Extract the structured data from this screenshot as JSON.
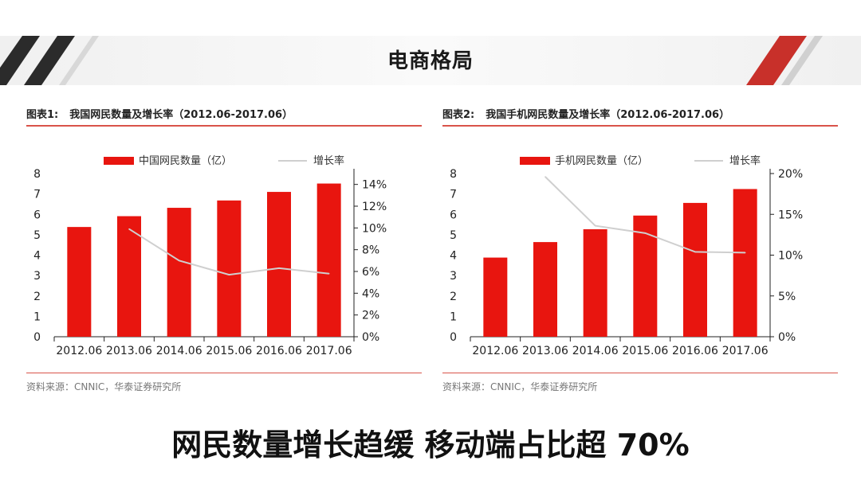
{
  "slide": {
    "title": "电商格局",
    "headline": "网民数量增长趋缓   移动端占比超 70%"
  },
  "colors": {
    "bar": "#e8150f",
    "line": "#cfcfcf",
    "rule": "#d9534a",
    "banner_stripe": "#2b2b2b",
    "banner_accent": "#c8302a"
  },
  "panels": [
    {
      "fig_no": "图表1:",
      "title": "我国网民数量及增长率（2012.06-2017.06）",
      "source": "资料来源：CNNIC，华泰证券研究所"
    },
    {
      "fig_no": "图表2:",
      "title": "我国手机网民数量及增长率（2012.06-2017.06）",
      "source": "资料来源：CNNIC，华泰证券研究所"
    }
  ],
  "chart_data": [
    {
      "type": "bar",
      "categories": [
        "2012.06",
        "2013.06",
        "2014.06",
        "2015.06",
        "2016.06",
        "2017.06"
      ],
      "series": [
        {
          "name": "中国网民数量（亿）",
          "kind": "bar",
          "axis": "left",
          "values": [
            5.38,
            5.91,
            6.32,
            6.68,
            7.1,
            7.51
          ]
        },
        {
          "name": "增长率",
          "kind": "line",
          "axis": "right",
          "values": [
            null,
            9.9,
            7.0,
            5.7,
            6.3,
            5.8
          ]
        }
      ],
      "ylim": [
        0,
        8
      ],
      "yticks": [
        "0",
        "1",
        "2",
        "3",
        "4",
        "5",
        "6",
        "7",
        "8"
      ],
      "y2lim": [
        0,
        15
      ],
      "y2ticks": [
        "0%",
        "2%",
        "4%",
        "6%",
        "8%",
        "10%",
        "12%",
        "14%"
      ],
      "y2tick_values": [
        0,
        2,
        4,
        6,
        8,
        10,
        12,
        14
      ],
      "legend": "top-center",
      "grid": false
    },
    {
      "type": "bar",
      "categories": [
        "2012.06",
        "2013.06",
        "2014.06",
        "2015.06",
        "2016.06",
        "2017.06"
      ],
      "series": [
        {
          "name": "手机网民数量（亿）",
          "kind": "bar",
          "axis": "left",
          "values": [
            3.88,
            4.64,
            5.27,
            5.94,
            6.56,
            7.24
          ]
        },
        {
          "name": "增长率",
          "kind": "line",
          "axis": "right",
          "values": [
            null,
            19.6,
            13.6,
            12.7,
            10.4,
            10.3
          ]
        }
      ],
      "ylim": [
        0,
        8
      ],
      "yticks": [
        "0",
        "1",
        "2",
        "3",
        "4",
        "5",
        "6",
        "7",
        "8"
      ],
      "y2lim": [
        0,
        20
      ],
      "y2ticks": [
        "0%",
        "5%",
        "10%",
        "15%",
        "20%"
      ],
      "y2tick_values": [
        0,
        5,
        10,
        15,
        20
      ],
      "legend": "top-center",
      "grid": false
    }
  ]
}
